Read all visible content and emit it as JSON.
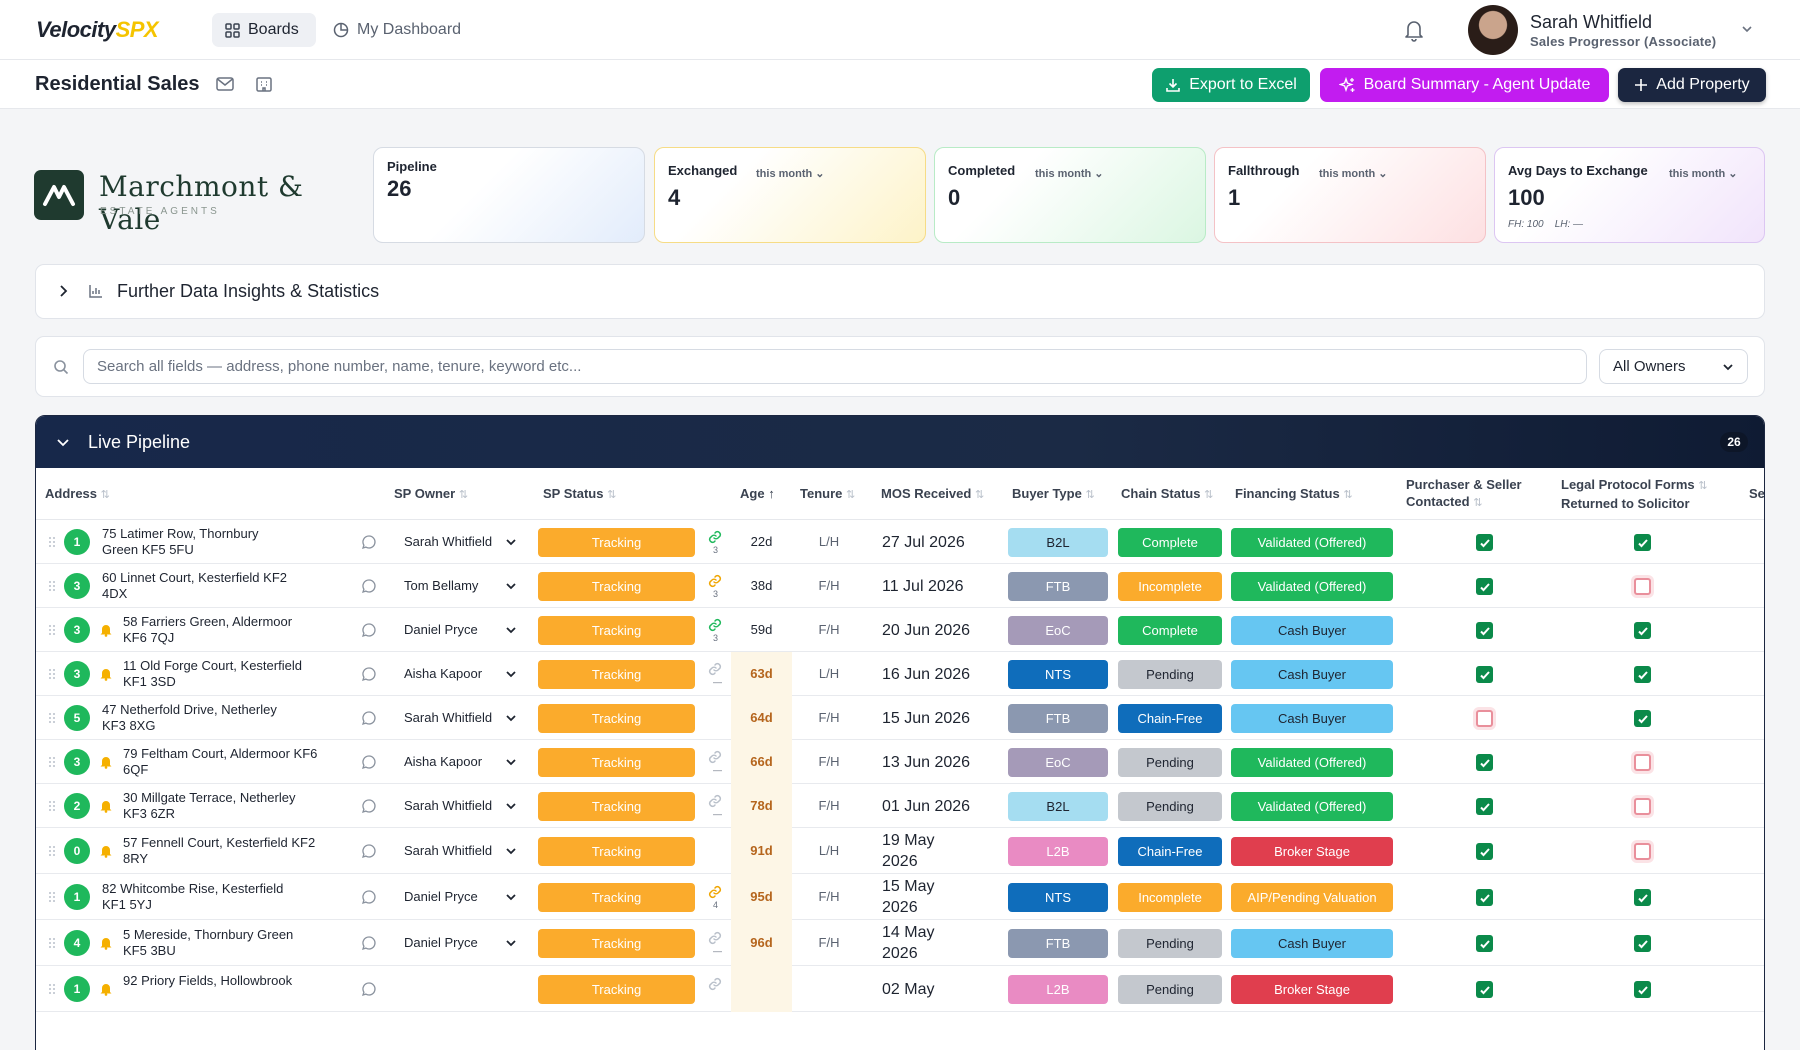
{
  "app": {
    "logo_main": "Velocity",
    "logo_accent": "SPX"
  },
  "nav": {
    "boards": "Boards",
    "dashboard": "My Dashboard"
  },
  "user": {
    "name": "Sarah Whitfield",
    "role": "Sales Progressor (Associate)"
  },
  "page": {
    "title": "Residential Sales"
  },
  "actions": {
    "export": "Export to Excel",
    "summary": "Board Summary - Agent Update",
    "add": "Add Property"
  },
  "brand": {
    "name": "Marchmont & Vale",
    "sub": "ESTATE AGENTS"
  },
  "stats": {
    "pipeline": {
      "label": "Pipeline",
      "value": "26"
    },
    "exchanged": {
      "label": "Exchanged",
      "period": "this month",
      "value": "4"
    },
    "completed": {
      "label": "Completed",
      "period": "this month",
      "value": "0"
    },
    "fallthrough": {
      "label": "Fallthrough",
      "period": "this month",
      "value": "1"
    },
    "avgdays": {
      "label": "Avg Days to Exchange",
      "period": "this month",
      "value": "100",
      "fh": "FH: 100",
      "lh": "LH: —"
    }
  },
  "insights": {
    "label": "Further Data Insights & Statistics"
  },
  "search": {
    "placeholder": "Search all fields — address, phone number, name, tenure, keyword etc...",
    "owners": "All Owners"
  },
  "pipeline": {
    "title": "Live Pipeline",
    "count": "26"
  },
  "columns": {
    "address": "Address",
    "owner": "SP Owner",
    "status": "SP Status",
    "age": "Age",
    "tenure": "Tenure",
    "mos": "MOS Received",
    "buyer": "Buyer Type",
    "chain": "Chain Status",
    "finance": "Financing Status",
    "contacted_1": "Purchaser & Seller",
    "contacted_2": "Contacted",
    "legal_1": "Legal Protocol Forms",
    "legal_2": "Returned to Solicitor",
    "se": "Se"
  },
  "colors": {
    "tracking": "#fbab2c",
    "b2l": "#a5ddf1",
    "ftb": "#8b98b0",
    "eoc": "#a59ab8",
    "nts": "#0f6dbb",
    "l2b": "#e98bc3",
    "complete": "#1fb85c",
    "incomplete": "#fbab2c",
    "pending": "#c4c8ce",
    "chainfree": "#0f6dbb",
    "validated": "#1fb85c",
    "cash": "#66c6f2",
    "broker": "#e03e4e",
    "aip": "#fbab2c"
  },
  "rows": [
    {
      "n": "1",
      "alert": false,
      "addr1": "75 Latimer Row, Thornbury",
      "addr2": "Green KF5 5FU",
      "owner": "Sarah Whitfield",
      "status": "Tracking",
      "link": "ok",
      "lc": "3",
      "age": "22d",
      "aged": false,
      "tenure": "L/H",
      "mos1": "27 Jul 2026",
      "mos2": "",
      "buyer": "B2L",
      "chain": "Complete",
      "finance": "Validated (Offered)",
      "c1": true,
      "c2": true
    },
    {
      "n": "3",
      "alert": false,
      "addr1": "60 Linnet Court, Kesterfield KF2",
      "addr2": "4DX",
      "owner": "Tom Bellamy",
      "status": "Tracking",
      "link": "warn",
      "lc": "3",
      "age": "38d",
      "aged": false,
      "tenure": "F/H",
      "mos1": "11 Jul 2026",
      "mos2": "",
      "buyer": "FTB",
      "chain": "Incomplete",
      "finance": "Validated (Offered)",
      "c1": true,
      "c2": false
    },
    {
      "n": "3",
      "alert": true,
      "addr1": "58 Farriers Green, Aldermoor",
      "addr2": "KF6 7QJ",
      "owner": "Daniel Pryce",
      "status": "Tracking",
      "link": "ok",
      "lc": "3",
      "age": "59d",
      "aged": false,
      "tenure": "F/H",
      "mos1": "20 Jun 2026",
      "mos2": "",
      "buyer": "EoC",
      "chain": "Complete",
      "finance": "Cash Buyer",
      "c1": true,
      "c2": true
    },
    {
      "n": "3",
      "alert": true,
      "addr1": "11 Old Forge Court, Kesterfield",
      "addr2": "KF1 3SD",
      "owner": "Aisha Kapoor",
      "status": "Tracking",
      "link": "none",
      "lc": "—",
      "age": "63d",
      "aged": true,
      "tenure": "L/H",
      "mos1": "16 Jun 2026",
      "mos2": "",
      "buyer": "NTS",
      "chain": "Pending",
      "finance": "Cash Buyer",
      "c1": true,
      "c2": true
    },
    {
      "n": "5",
      "alert": false,
      "addr1": "47 Netherfold Drive, Netherley",
      "addr2": "KF3 8XG",
      "owner": "Sarah Whitfield",
      "status": "Tracking",
      "link": "",
      "lc": "",
      "age": "64d",
      "aged": true,
      "tenure": "F/H",
      "mos1": "15 Jun 2026",
      "mos2": "",
      "buyer": "FTB",
      "chain": "Chain-Free",
      "finance": "Cash Buyer",
      "c1": false,
      "c2": true
    },
    {
      "n": "3",
      "alert": true,
      "addr1": "79 Feltham Court, Aldermoor KF6",
      "addr2": "6QF",
      "owner": "Aisha Kapoor",
      "status": "Tracking",
      "link": "none",
      "lc": "—",
      "age": "66d",
      "aged": true,
      "tenure": "F/H",
      "mos1": "13 Jun 2026",
      "mos2": "",
      "buyer": "EoC",
      "chain": "Pending",
      "finance": "Validated (Offered)",
      "c1": true,
      "c2": false
    },
    {
      "n": "2",
      "alert": true,
      "addr1": "30 Millgate Terrace, Netherley",
      "addr2": "KF3 6ZR",
      "owner": "Sarah Whitfield",
      "status": "Tracking",
      "link": "none",
      "lc": "—",
      "age": "78d",
      "aged": true,
      "tenure": "F/H",
      "mos1": "01 Jun 2026",
      "mos2": "",
      "buyer": "B2L",
      "chain": "Pending",
      "finance": "Validated (Offered)",
      "c1": true,
      "c2": false
    },
    {
      "n": "0",
      "alert": true,
      "addr1": "57 Fennell Court, Kesterfield KF2",
      "addr2": "8RY",
      "owner": "Sarah Whitfield",
      "status": "Tracking",
      "link": "",
      "lc": "",
      "age": "91d",
      "aged": true,
      "tenure": "L/H",
      "mos1": "19 May",
      "mos2": "2026",
      "buyer": "L2B",
      "chain": "Chain-Free",
      "finance": "Broker Stage",
      "c1": true,
      "c2": false
    },
    {
      "n": "1",
      "alert": false,
      "addr1": "82 Whitcombe Rise, Kesterfield",
      "addr2": "KF1 5YJ",
      "owner": "Daniel Pryce",
      "status": "Tracking",
      "link": "warn",
      "lc": "4",
      "age": "95d",
      "aged": true,
      "tenure": "F/H",
      "mos1": "15 May",
      "mos2": "2026",
      "buyer": "NTS",
      "chain": "Incomplete",
      "finance": "AIP/Pending Valuation",
      "c1": true,
      "c2": true
    },
    {
      "n": "4",
      "alert": true,
      "addr1": "5 Mereside, Thornbury Green",
      "addr2": "KF5 3BU",
      "owner": "Daniel Pryce",
      "status": "Tracking",
      "link": "none",
      "lc": "—",
      "age": "96d",
      "aged": true,
      "tenure": "F/H",
      "mos1": "14 May",
      "mos2": "2026",
      "buyer": "FTB",
      "chain": "Pending",
      "finance": "Cash Buyer",
      "c1": true,
      "c2": true
    },
    {
      "n": "1",
      "alert": true,
      "addr1": "92 Priory Fields, Hollowbrook",
      "addr2": "",
      "owner": "",
      "status": "Tracking",
      "link": "none",
      "lc": "",
      "age": "",
      "aged": true,
      "tenure": "",
      "mos1": "02 May",
      "mos2": "",
      "buyer": "L2B",
      "chain": "Pending",
      "finance": "Broker Stage",
      "c1": true,
      "c2": true
    }
  ]
}
